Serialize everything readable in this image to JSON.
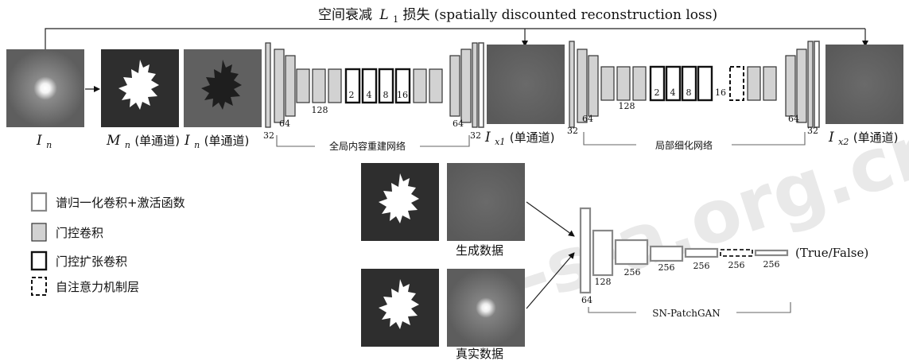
{
  "title": {
    "prefix": "空间衰减",
    "symbol": "L",
    "sub": "1",
    "suffix": " 损失 (spatially discounted reconstruction loss)"
  },
  "images": {
    "in": {
      "sym": "I",
      "sub": "n",
      "suffix": ""
    },
    "mn": {
      "sym": "M",
      "sub": "n",
      "suffix": " (单通道)"
    },
    "in2": {
      "sym": "I",
      "sub": "n",
      "suffix": " (单通道)"
    },
    "ix1": {
      "sym": "I",
      "sub": "x1",
      "suffix": " (单通道)"
    },
    "ix2": {
      "sym": "I",
      "sub": "x2",
      "suffix": " (单通道)"
    }
  },
  "networks": {
    "global": "全局内容重建网络",
    "local": "局部细化网络",
    "disc": "SN-PatchGAN"
  },
  "channel_labels": {
    "c32": "32",
    "c64": "64",
    "c128": "128",
    "c256": "256",
    "d2": "2",
    "d4": "4",
    "d8": "8",
    "d16": "16"
  },
  "legend": [
    {
      "label": "谱归一化卷积+激活函数",
      "icon": "sn-conv-icon"
    },
    {
      "label": "门控卷积",
      "icon": "gated-conv-icon"
    },
    {
      "label": "门控扩张卷积",
      "icon": "gated-dilated-conv-icon"
    },
    {
      "label": "自注意力机制层",
      "icon": "self-attention-icon"
    }
  ],
  "disc_inputs": {
    "generated": "生成数据",
    "real": "真实数据"
  },
  "output": "(True/False)",
  "watermark": "c-s-a.org.cn",
  "colors": {
    "gated": "#d2d2d2",
    "image_bg": "#5e5e5e",
    "mask_bg": "#2e2e2e"
  }
}
